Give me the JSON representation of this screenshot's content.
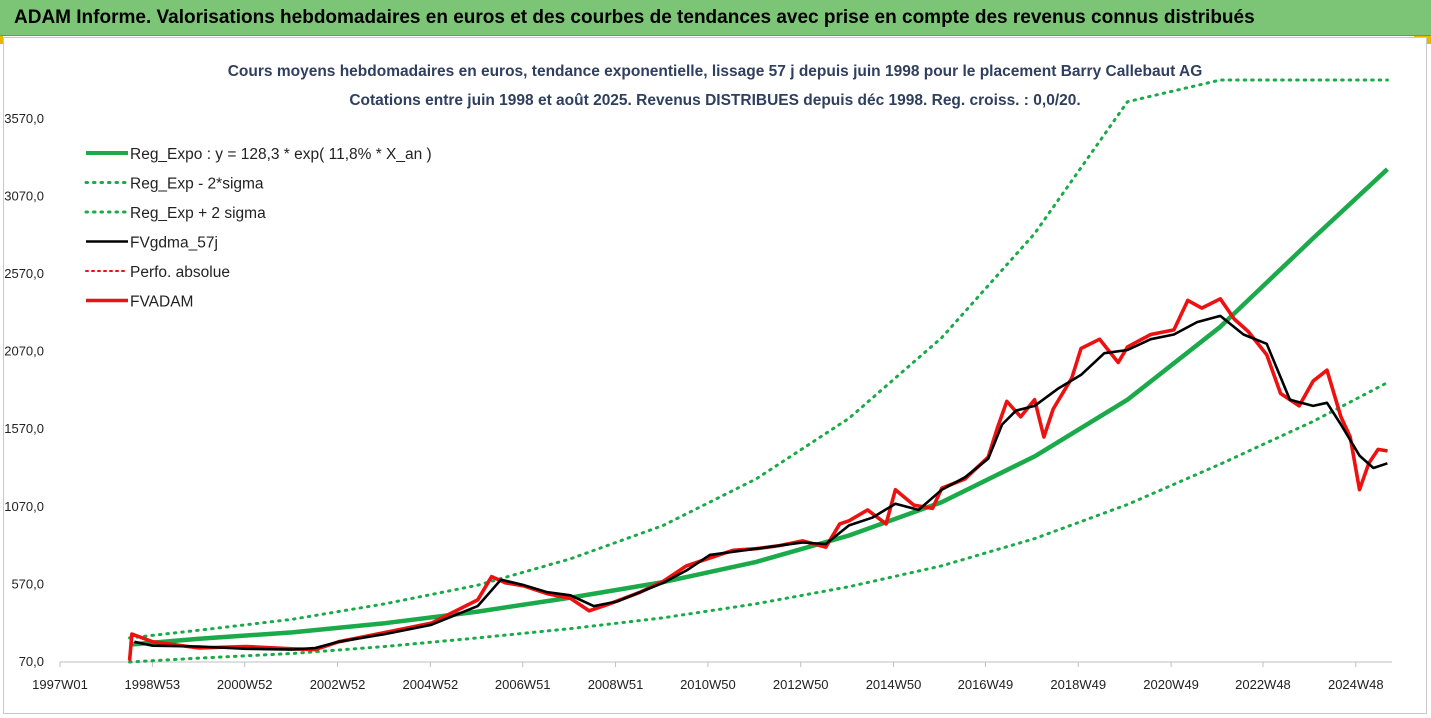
{
  "header": {
    "title": "ADAM Informe. Valorisations hebdomadaires en euros et des courbes de tendances avec prise en compte des revenus connus distribués"
  },
  "chart_data": {
    "type": "line",
    "title": "Cours moyens hebdomadaires en euros, tendance exponentielle, lissage 57 j depuis juin 1998 pour le placement Barry Callebaut AG",
    "subtitle": "Cotations entre juin 1998 et août 2025. Revenus DISTRIBUES depuis déc 1998. Reg. croiss. : 0,0/20.",
    "xlabel": "",
    "ylabel": "",
    "ylim": [
      70,
      3820
    ],
    "y_ticks": [
      70,
      570,
      1070,
      1570,
      2070,
      2570,
      3070,
      3570
    ],
    "y_tick_labels": [
      "70,0",
      "570,0",
      "1070,0",
      "1570,0",
      "2070,0",
      "2570,0",
      "3070,0",
      "3570,0"
    ],
    "x_range": [
      1997.0,
      2025.7
    ],
    "x_ticks": [
      1997.0,
      1998.99,
      2000.98,
      2002.98,
      2004.98,
      2006.97,
      2008.97,
      2010.96,
      2012.96,
      2014.96,
      2016.94,
      2018.94,
      2020.94,
      2022.92,
      2024.92
    ],
    "x_tick_labels": [
      "1997W01",
      "1998W53",
      "2000W52",
      "2002W52",
      "2004W52",
      "2006W51",
      "2008W51",
      "2010W50",
      "2012W50",
      "2014W50",
      "2016W49",
      "2018W49",
      "2020W49",
      "2022W48",
      "2024W48"
    ],
    "grid": false,
    "legend_position": "top-left",
    "colors": {
      "green": "#1aaa4a",
      "red": "#ee1111",
      "black": "#000000"
    },
    "series": [
      {
        "name": "Reg_Expo : y = 128,3 * exp( 11,8% *  X_an )",
        "style": "solid",
        "color": "#1aaa4a",
        "x": [
          1998.5,
          2000,
          2002,
          2004,
          2006,
          2008,
          2010,
          2012,
          2014,
          2016,
          2018,
          2020,
          2022,
          2024,
          2025.6
        ],
        "values": [
          182,
          220,
          261,
          320,
          395,
          485,
          585,
          715,
          885,
          1100,
          1395,
          1760,
          2230,
          2800,
          3245
        ]
      },
      {
        "name": "Reg_Exp - 2*sigma",
        "style": "dotted",
        "color": "#1aaa4a",
        "x": [
          1998.5,
          2000,
          2002,
          2004,
          2006,
          2008,
          2010,
          2012,
          2014,
          2016,
          2018,
          2020,
          2022,
          2024,
          2025.6
        ],
        "values": [
          70,
          95,
          125,
          170,
          225,
          285,
          355,
          445,
          555,
          690,
          865,
          1085,
          1345,
          1620,
          1870
        ]
      },
      {
        "name": "Reg_Exp + 2 sigma",
        "style": "dotted",
        "color": "#1aaa4a",
        "x": [
          1998.5,
          2000,
          2002,
          2004,
          2006,
          2008,
          2010,
          2012,
          2014,
          2016,
          2018,
          2020,
          2022,
          2022.05,
          2025.6
        ],
        "values": [
          225,
          275,
          345,
          445,
          565,
          735,
          950,
          1250,
          1640,
          2160,
          2830,
          3680,
          3820,
          3820,
          3820
        ]
      },
      {
        "name": "FVgdma_57j",
        "style": "solid",
        "color": "#000000",
        "x": [
          1998.6,
          1999,
          2000,
          2001,
          2002,
          2002.5,
          2003,
          2004,
          2005,
          2006,
          2006.5,
          2007,
          2007.5,
          2008,
          2008.5,
          2009,
          2009.5,
          2010,
          2010.5,
          2011,
          2011.5,
          2012,
          2012.5,
          2013,
          2013.5,
          2014,
          2014.5,
          2015,
          2015.5,
          2016,
          2016.5,
          2017,
          2017.3,
          2017.6,
          2018,
          2018.5,
          2019,
          2019.5,
          2020,
          2020.5,
          2021,
          2021.5,
          2022,
          2022.5,
          2023,
          2023.5,
          2024,
          2024.3,
          2024.6,
          2025,
          2025.3,
          2025.6
        ],
        "values": [
          200,
          175,
          170,
          155,
          150,
          160,
          200,
          250,
          310,
          430,
          600,
          565,
          520,
          500,
          430,
          460,
          520,
          580,
          660,
          760,
          780,
          800,
          820,
          840,
          830,
          950,
          1000,
          1090,
          1050,
          1180,
          1260,
          1380,
          1600,
          1690,
          1720,
          1830,
          1920,
          2060,
          2080,
          2150,
          2180,
          2260,
          2300,
          2180,
          2120,
          1760,
          1720,
          1740,
          1600,
          1400,
          1320,
          1350
        ]
      },
      {
        "name": "Perfo. absolue",
        "style": "dotted",
        "color": "#ee1111",
        "x": [
          1998.5,
          1998.55,
          1999,
          2000,
          2001,
          2002,
          2002.5,
          2003,
          2004,
          2005,
          2006,
          2006.3,
          2006.6,
          2007,
          2007.5,
          2008,
          2008.4,
          2008.8,
          2009.5,
          2010,
          2010.5,
          2011,
          2011.5,
          2012,
          2012.5,
          2013,
          2013.5,
          2013.8,
          2014,
          2014.4,
          2014.8,
          2015,
          2015.4,
          2015.8,
          2016,
          2016.5,
          2017,
          2017.2,
          2017.4,
          2017.7,
          2018,
          2018.2,
          2018.4,
          2018.8,
          2019,
          2019.4,
          2019.8,
          2020,
          2020.5,
          2021,
          2021.3,
          2021.6,
          2022,
          2022.3,
          2022.6,
          2023,
          2023.3,
          2023.7,
          2024,
          2024.3,
          2024.6,
          2024.8,
          2025.0,
          2025.2,
          2025.4,
          2025.6
        ],
        "values": [
          80,
          250,
          200,
          160,
          170,
          155,
          150,
          200,
          260,
          320,
          470,
          620,
          580,
          560,
          510,
          480,
          400,
          440,
          520,
          590,
          690,
          740,
          790,
          800,
          820,
          850,
          810,
          960,
          980,
          1050,
          960,
          1180,
          1080,
          1060,
          1190,
          1250,
          1390,
          1580,
          1750,
          1650,
          1760,
          1520,
          1700,
          1900,
          2090,
          2150,
          2000,
          2100,
          2180,
          2210,
          2400,
          2350,
          2410,
          2280,
          2200,
          2050,
          1800,
          1720,
          1880,
          1950,
          1650,
          1520,
          1180,
          1350,
          1440,
          1430
        ]
      },
      {
        "name": "FVADAM",
        "style": "solid",
        "color": "#ee1111",
        "x": [
          1998.5,
          1998.55,
          1999,
          2000,
          2001,
          2002,
          2002.5,
          2003,
          2004,
          2005,
          2006,
          2006.3,
          2006.6,
          2007,
          2007.5,
          2008,
          2008.4,
          2008.8,
          2009.5,
          2010,
          2010.5,
          2011,
          2011.5,
          2012,
          2012.5,
          2013,
          2013.5,
          2013.8,
          2014,
          2014.4,
          2014.8,
          2015,
          2015.4,
          2015.8,
          2016,
          2016.5,
          2017,
          2017.2,
          2017.4,
          2017.7,
          2018,
          2018.2,
          2018.4,
          2018.8,
          2019,
          2019.4,
          2019.8,
          2020,
          2020.5,
          2021,
          2021.3,
          2021.6,
          2022,
          2022.3,
          2022.6,
          2023,
          2023.3,
          2023.7,
          2024,
          2024.3,
          2024.6,
          2024.8,
          2025.0,
          2025.2,
          2025.4,
          2025.6
        ],
        "values": [
          80,
          250,
          200,
          160,
          170,
          155,
          150,
          200,
          260,
          320,
          470,
          620,
          580,
          560,
          510,
          480,
          400,
          440,
          520,
          590,
          690,
          740,
          790,
          800,
          820,
          850,
          810,
          960,
          980,
          1050,
          960,
          1180,
          1080,
          1060,
          1190,
          1250,
          1390,
          1580,
          1750,
          1650,
          1760,
          1520,
          1700,
          1900,
          2090,
          2150,
          2000,
          2100,
          2180,
          2210,
          2400,
          2350,
          2410,
          2280,
          2200,
          2050,
          1800,
          1720,
          1880,
          1950,
          1650,
          1520,
          1180,
          1350,
          1440,
          1430
        ]
      }
    ]
  }
}
